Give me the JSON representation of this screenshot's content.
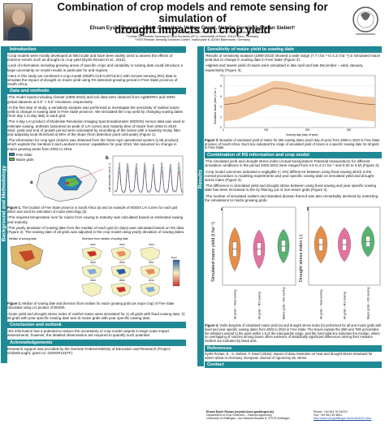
{
  "header": {
    "title_line1": "Combination of crop models and remote sensing for simulation of",
    "title_line2": "drought impacts on crop yield",
    "authors": "Ehsan Eyshi Rezaei¹, Javier González², Velene Graw², Natalie Cornish³, Stefan Siebert¹",
    "affiliations": [
      "¹ Department of Crop Sciences, University of Göttingen, Von-Siebold-Strasse 8, 37075, Göttingen, Germany",
      "² Center for Remote Sensing of Land Surfaces (ZFL), Universität of Bonn, 53113 Bonn, Germany",
      "³ RSS Remote Sensing Solutions GmbH, Isartorplatz 8, 82049 Baierbrunn, Germany"
    ]
  },
  "sidebar": {
    "left": "Background and Methodology",
    "right": "Results"
  },
  "left": {
    "introduction_title": "Introduction",
    "introduction_paras": [
      "-Crop models were mostly developed at field scale and have been widely used to assess the effects of extreme events such as drought on crop yield (Eyshi Rezaei et al., 2015).",
      "-Lack of information including growing areas of specific crops and variability in sowing date could introduce a large uncertainty on model results in particular for arid regions.",
      "-Here in this study we combined a crop model (SIMPLACE<LINTUL5>) with remote sensing (RS) data to simulate the impact of drought on maize yield using RS detected growing period in Free State province of South Africa."
    ],
    "data_title": "Data and methods",
    "data_paras": [
      "-The model inputs including climate (1980-2010) and soil data were obtained from AgMERRA and ISRIC global datasets at 0.5° × 0.5° resolution, respectively.",
      "-At the first step of study, a sensitivity analysis was performed to investigate the sensitivity of rainfed maize yield to change in sowing date in Free State province. We simulated the crop yield by changing sowing dates (from day 1 to day 365) in each grid.",
      "-The 4-day LAI product of Moderate Resolution Imaging Spectroradiometer (MODIS) sensor data was used to estimate sowing, anthesis (assumed as peak of LAI curve) and maturity time of maize from 2002 to 2010. Start, peak and end of growth period were calculated by smoothing of the series with a Savitzky-Golay filter and adjusting local threshold at 50% of the slope (from detection point until peak) (Figure 1).",
      "-The information for crop type (maize) was obtained from the Sen2-Agri operational system (LAB product), which exploits the Sentinel-2 and Landsat 8 sensor capabilities for year 2016. We assumed no change in maize growing areas from 2002 to 2016."
    ],
    "fig1_legend": [
      "Free State",
      "Maize grids"
    ],
    "fig1_labels": [
      "a",
      "b"
    ],
    "fig1_ylabel": "Leaf area index (m² m⁻²)",
    "fig1_caption_label": "Figure 1.",
    "fig1_caption": " The location of Free State province in South Africa (a) and an example of MODIS LAI curves for each grid which was used for estimation of maize phenology (b).",
    "after_fig1_paras": [
      "-The required temperature sum for maize from sowing to maturity was calculated based on estimated sowing and maturity.",
      "-The yearly deviation of sowing date from the median of each grid (in days) was calculated based on RS data (Figure 2). The sowing date of all grids was adjusted in the crop model using yearly deviation of sowing dates."
    ],
    "fig2_titles": [
      "Median of sowing date",
      "Diversion from median of sowing date"
    ],
    "fig2_years": [
      "2002",
      "2003",
      "2004",
      "2005",
      "2006",
      "2007",
      "2008",
      "2009",
      "2010"
    ],
    "fig2_legend_days": "Days",
    "fig2_caption_label": "Figure 2.",
    "fig2_caption": " Median of sowing date and diversion from median for maize growing grids (as major crop) of Free State calculated using LAI product of MODIS.",
    "after_fig2_para": "-Grain yield and drought stress index of rainfed maize were simulated for 1) all grids with fixed sowing date, 2) all grids with year specific sowing date and 3) maize grids with year specific sowing date.",
    "conclusion_title": "Conclusion and outlook",
    "conclusion_para": "-RS information has a potential to reduce the uncertainty of crop model outputs in large scale impact assessments, however, the detailed observations are required to quantify such potential.",
    "ack_title": "Acknowledgements",
    "ack_para": "Research support was provided by the German Federal Ministry of Education and Research (Project: GlobeDrought, grant no. 02WGR1457F)."
  },
  "right": {
    "sensitivity_title": "Sensitivity of maize yield to sowing date",
    "sensitivity_paras": [
      "-Results of sensitivity analysis (1980-2010) showed a wide range (7.7 t ha⁻¹ to 4.3 t ha⁻¹) in simulated maize yield due to change in sowing date in Free State (Figure 3).",
      "-Highest and lowest yield of maize were simulated in late April and late December – early January, respectively (Figure 3)."
    ],
    "fig3_ylabel": "Simulated maize yield (t ha⁻¹)",
    "fig3_xlabel": "Sowing day (day of year)",
    "fig3_caption_label": "Figure 3:",
    "fig3_caption": " Boxplots of simulated yield of maize for 365 sowing dates (each day of year) from 1980 to 2010 in Free State province of South Africa. Each box indicated the range of simulated yield of maize in a specific sowing date for all grids in Free State.",
    "combination_title": "Combination of RS information and crop model",
    "combination_paras": [
      "-The simulated yield and drought stress index (Actual transpiration/ Potential transpiration) for different simulation conditions in the period 2002-2010 were ranged from 0.5 to 4.2 t ha⁻¹ and 0.52 to 0.63 (Figure 4).",
      "-Crop model outcomes indicated a negligible (< 3%) difference between using fixed sowing which is the normal procedure in modeling experiments and year specific sowing date on simulated yield and drought stress index (Figure 4).",
      "-The difference in simulated yield and drought stress between using fixed sowing and year specific sowing date has been increased to 8% by filtering out of non-maize grids (Figure 4).",
      "-The number of simulated outliers and standard division thereof was also remarkably declined by restricting the simulations to maize growing grids."
    ],
    "fig4_ylabel_left": "Simulated maize yield (t ha⁻¹)",
    "fig4_ylabel_right": "Drought stress index (-)",
    "fig4_categories": [
      "All grids – fixed sowing",
      "All grids – RS sowing",
      "Maize grids – RS sowing"
    ],
    "fig4_caption_label": "Figure 4:",
    "fig4_caption": " Violin-boxplots of simulated maize yield (a) and drought stress index (b) performed for all and maize grids with fixed and year specific sowing dates from 2002 to 2010 in Free State. The boxes explain the 25th and 75th percentiles; the whiskers extend to the point within 1.5 of the interquartile range, and the horizontal line indicates the median, where no overlapping of notches among boxes offers evidence of statistically significant differences among their medians. Outliers are indicated by black dots.",
    "references_title": "References",
    "references_para": "Eyshi Rezaei, E., S. Siebert, F. Ewert (2015): Impact of data resolution on heat and drought stress simulated for winter wheat in Germany. European Journal of Agronomy 65, 69-82.",
    "contact_title": "Contact",
    "contact_name": "Ehsan Eyshi Rezaei (eeyshir@uni-goettingen.de)",
    "contact_lines": [
      "Department of Crop Sciences – Division Agronomy",
      "University of Göttingen, Von-Siebold-Strasse 8, 37075 Göttingen"
    ],
    "contact_phone": "Phone: +49 551 39 24379",
    "contact_fax": "Fax: +49 551 39 4601",
    "contact_web": "http://www.uni-goettingen.de/en/424321.html"
  },
  "chart_data": [
    {
      "type": "area",
      "title": "",
      "xlabel": "Sowing day (day of year)",
      "ylabel": "Simulated maize yield (t ha⁻¹)",
      "x": [
        0,
        30,
        60,
        90,
        120,
        150,
        180,
        210,
        240,
        270,
        300,
        330,
        365
      ],
      "ylim": [
        0,
        10
      ],
      "xlim": [
        0,
        365
      ],
      "series": [
        {
          "values": [
            4.4,
            4.7,
            5.6,
            6.6,
            7.6,
            7.4,
            6.8,
            6.3,
            5.8,
            5.4,
            5.0,
            4.6,
            4.4
          ]
        }
      ]
    },
    {
      "type": "bar",
      "title": "",
      "categories": [
        "All grids – fixed sowing",
        "All grids – RS sowing",
        "Maize grids – RS sowing"
      ],
      "series": [
        {
          "name": "a",
          "values": [
            2.3,
            2.3,
            2.5
          ]
        },
        {
          "name": "b",
          "values": [
            0.58,
            0.58,
            0.59
          ]
        }
      ],
      "ylim": [
        0,
        5
      ]
    }
  ],
  "colors": {
    "section": "#1f8a95",
    "violin_fixed": "#e07b2a",
    "violin_rs": "#e05a8f",
    "violin_maize": "#3aa55a",
    "fig3_band": "#f0c29a"
  }
}
